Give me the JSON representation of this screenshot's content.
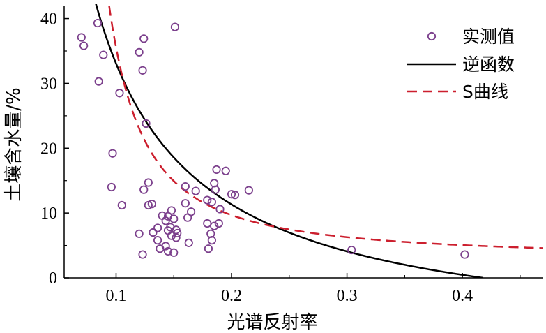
{
  "chart_data": {
    "type": "scatter",
    "title": "",
    "xlabel": "光谱反射率",
    "ylabel": "土壤含水量/%",
    "xlim": [
      0.055,
      0.47
    ],
    "ylim": [
      0,
      42
    ],
    "xticks": [
      0.1,
      0.2,
      0.3,
      0.4
    ],
    "xtick_labels": [
      "0.1",
      "0.2",
      "0.3",
      "0.4"
    ],
    "yticks": [
      0,
      10,
      20,
      30,
      40
    ],
    "ytick_labels": [
      "0",
      "10",
      "20",
      "30",
      "40"
    ],
    "grid": false,
    "legend_position": "top-right",
    "series": [
      {
        "name": "实测值",
        "kind": "scatter",
        "color": "#7b3f8c",
        "points": [
          [
            0.084,
            39.3
          ],
          [
            0.151,
            38.7
          ],
          [
            0.07,
            37.1
          ],
          [
            0.124,
            36.9
          ],
          [
            0.072,
            35.8
          ],
          [
            0.12,
            34.8
          ],
          [
            0.089,
            34.4
          ],
          [
            0.123,
            32.0
          ],
          [
            0.085,
            30.3
          ],
          [
            0.103,
            28.5
          ],
          [
            0.126,
            23.8
          ],
          [
            0.097,
            19.2
          ],
          [
            0.187,
            16.7
          ],
          [
            0.195,
            16.5
          ],
          [
            0.096,
            14.0
          ],
          [
            0.128,
            14.7
          ],
          [
            0.16,
            14.1
          ],
          [
            0.185,
            14.6
          ],
          [
            0.124,
            13.6
          ],
          [
            0.169,
            13.4
          ],
          [
            0.186,
            13.6
          ],
          [
            0.215,
            13.5
          ],
          [
            0.2,
            12.9
          ],
          [
            0.203,
            12.8
          ],
          [
            0.179,
            12.0
          ],
          [
            0.183,
            11.7
          ],
          [
            0.16,
            11.5
          ],
          [
            0.128,
            11.2
          ],
          [
            0.131,
            11.4
          ],
          [
            0.105,
            11.2
          ],
          [
            0.19,
            10.6
          ],
          [
            0.148,
            10.4
          ],
          [
            0.165,
            10.2
          ],
          [
            0.14,
            9.6
          ],
          [
            0.145,
            9.5
          ],
          [
            0.15,
            9.1
          ],
          [
            0.162,
            9.3
          ],
          [
            0.143,
            8.8
          ],
          [
            0.179,
            8.4
          ],
          [
            0.189,
            8.4
          ],
          [
            0.185,
            8.0
          ],
          [
            0.136,
            7.7
          ],
          [
            0.147,
            7.8
          ],
          [
            0.152,
            7.4
          ],
          [
            0.145,
            7.3
          ],
          [
            0.132,
            7.0
          ],
          [
            0.153,
            6.9
          ],
          [
            0.12,
            6.8
          ],
          [
            0.148,
            6.5
          ],
          [
            0.152,
            6.2
          ],
          [
            0.182,
            6.8
          ],
          [
            0.183,
            5.8
          ],
          [
            0.136,
            5.8
          ],
          [
            0.163,
            5.4
          ],
          [
            0.143,
            4.9
          ],
          [
            0.138,
            4.5
          ],
          [
            0.145,
            4.1
          ],
          [
            0.15,
            3.9
          ],
          [
            0.18,
            4.5
          ],
          [
            0.123,
            3.6
          ],
          [
            0.304,
            4.3
          ],
          [
            0.402,
            3.6
          ]
        ]
      },
      {
        "name": "逆函数",
        "kind": "line",
        "color": "#000000",
        "dash": "solid",
        "model": "y = a/x + b",
        "a": 4.345,
        "b": -10.4,
        "x_range": [
          0.066,
          0.418
        ]
      },
      {
        "name": "S曲线",
        "kind": "line",
        "color": "#cc1f2e",
        "dash": "dashed",
        "model": "y = exp(a/x + b)",
        "a": 0.26,
        "b": 0.97,
        "x_range": [
          0.065,
          0.47
        ]
      }
    ]
  }
}
